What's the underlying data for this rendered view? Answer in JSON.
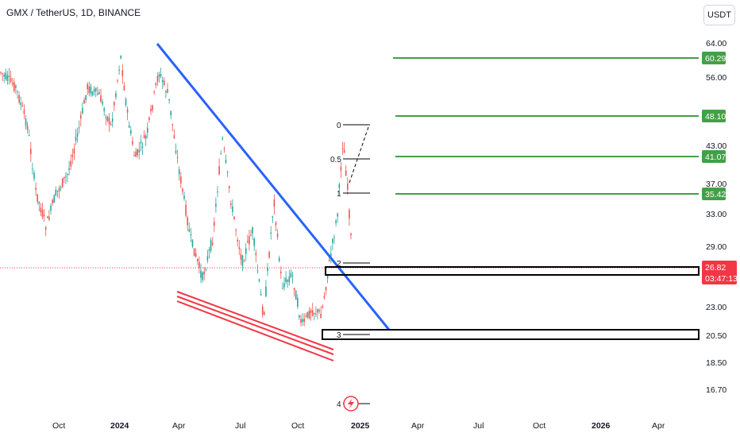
{
  "header": {
    "title": "GMX / TetherUS, 1D, BINANCE",
    "currency": "USDT"
  },
  "chart_data": {
    "type": "candlestick",
    "y_axis": {
      "scale": "log",
      "ticks": [
        "64.00",
        "56.00",
        "43.00",
        "37.00",
        "33.00",
        "29.00",
        "23.00",
        "20.50",
        "18.50",
        "16.70"
      ]
    },
    "x_axis": {
      "ticks": [
        "Oct",
        "2024",
        "Apr",
        "Jul",
        "Oct",
        "2025",
        "Apr",
        "Jul",
        "Oct",
        "2026",
        "Apr"
      ]
    },
    "price_badges": [
      {
        "value": "60.29",
        "color": "#43a047"
      },
      {
        "value": "48.10",
        "color": "#43a047"
      },
      {
        "value": "41.07",
        "color": "#43a047"
      },
      {
        "value": "35.42",
        "color": "#43a047"
      },
      {
        "value": "26.82",
        "color": "#f23645",
        "sub": "03:47:13"
      },
      {
        "value": "20.50",
        "color": "#ffffff"
      }
    ],
    "fib_labels": [
      "0",
      "0.5",
      "1",
      "2",
      "3",
      "4"
    ],
    "colors": {
      "up": "#26a69a",
      "down": "#ef5350",
      "trendline": "#2962ff",
      "channel": "#f23645",
      "target": "#43a047"
    }
  }
}
